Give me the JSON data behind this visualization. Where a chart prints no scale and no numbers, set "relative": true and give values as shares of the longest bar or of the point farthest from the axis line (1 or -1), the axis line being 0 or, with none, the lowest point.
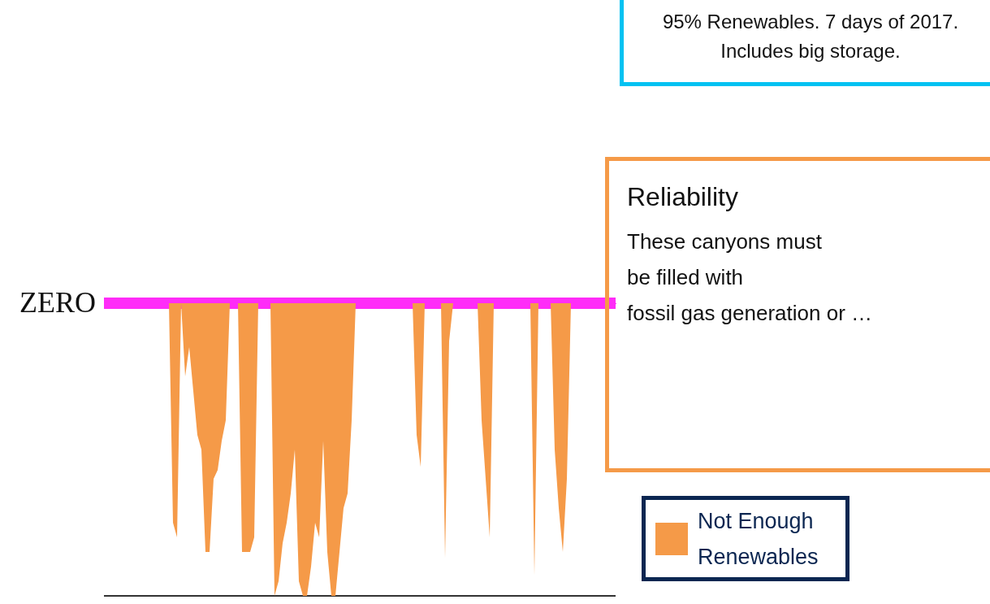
{
  "chart_data": {
    "type": "area",
    "relative": true,
    "categories": [
      null,
      null,
      null,
      null,
      null,
      null,
      null,
      null,
      null,
      null,
      null,
      null,
      null,
      null,
      null,
      null,
      null,
      null,
      null,
      null,
      null,
      null,
      null,
      null,
      null,
      null,
      null,
      null,
      null,
      null,
      null,
      null,
      null,
      null,
      null,
      null,
      null,
      null,
      null,
      null,
      null,
      null,
      null,
      null,
      null,
      null,
      null,
      null,
      null,
      null,
      null,
      null,
      null,
      null,
      null,
      null,
      null,
      null,
      null,
      null,
      null,
      null,
      null,
      null,
      null,
      null,
      null,
      null,
      null,
      null,
      null,
      null,
      null,
      null,
      null,
      null,
      null,
      null,
      null,
      null,
      null,
      null,
      null,
      null,
      null,
      null,
      null,
      null,
      null,
      null,
      null,
      null,
      null,
      null,
      null,
      null,
      null,
      null,
      null,
      null,
      null,
      null,
      null,
      null,
      null,
      null,
      null,
      null,
      null,
      null,
      null,
      null,
      null,
      null,
      null,
      null,
      null,
      null,
      null,
      null,
      null,
      null,
      null,
      null,
      null,
      null,
      null
    ],
    "series": [
      {
        "name": "Not Enough Renewables",
        "color": "#f59a48",
        "values": [
          0,
          0,
          0,
          0,
          0,
          0,
          0,
          0,
          0,
          0,
          0,
          0,
          0,
          0,
          0,
          0,
          0,
          -0.75,
          -0.8,
          0,
          -0.25,
          -0.15,
          -0.3,
          -0.45,
          -0.5,
          -0.85,
          -0.85,
          -0.6,
          -0.57,
          -0.47,
          -0.4,
          0,
          0,
          0,
          -0.85,
          -0.85,
          -0.85,
          -0.8,
          0,
          0,
          0,
          0,
          -1,
          -0.95,
          -0.82,
          -0.75,
          -0.65,
          -0.5,
          -0.95,
          -1,
          -1,
          -0.9,
          -0.75,
          -0.8,
          -0.47,
          -0.85,
          -1,
          -1,
          -0.85,
          -0.7,
          -0.65,
          -0.4,
          0,
          0,
          0,
          0,
          0,
          0,
          0,
          0,
          0,
          0,
          0,
          0,
          0,
          0,
          0,
          -0.45,
          -0.56,
          0,
          0,
          0,
          0,
          0,
          -0.87,
          -0.13,
          0,
          0,
          0,
          0,
          0,
          0,
          0,
          -0.4,
          -0.6,
          -0.8,
          0,
          0,
          0,
          0,
          0,
          0,
          0,
          0,
          0,
          0,
          -0.93,
          0,
          0,
          0,
          0,
          -0.5,
          -0.7,
          -0.85,
          -0.6,
          0,
          0,
          0,
          0,
          0,
          0,
          0,
          0,
          0,
          0,
          0,
          0
        ]
      }
    ],
    "ref_lines": [
      {
        "axis": "y",
        "value": 0,
        "label": "ZERO",
        "color": "#ff2cf8"
      }
    ],
    "legend": "right",
    "annotations": [
      "95% Renewables. 7 days of 2017.\nIncludes big storage.",
      "Reliability",
      "These canyons must\nbe filled with\nfossil gas generation or …"
    ]
  }
}
